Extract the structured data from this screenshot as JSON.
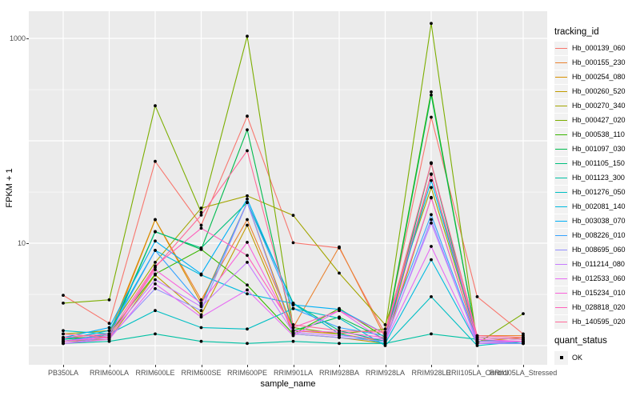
{
  "figure": {
    "x_axis_title": "sample_name",
    "y_axis_title": "FPKM + 1",
    "y_tick_labels": [
      "1000",
      "10"
    ],
    "legends": {
      "tracking": {
        "title": "tracking_id"
      },
      "quant": {
        "title": "quant_status",
        "items": [
          {
            "label": "OK"
          }
        ]
      }
    },
    "colors": {
      "panel_bg": "#EBEBEB",
      "gridline": "#FFFFFF",
      "tick_label": "#4D4D4D",
      "axis_title": "#000000",
      "legend_key_bg": "#F2F2F2",
      "point": "#000000"
    }
  },
  "chart_data": {
    "type": "line",
    "title": "",
    "xlabel": "sample_name",
    "ylabel": "FPKM + 1",
    "y_scale": "log10",
    "ylim": [
      0.9,
      1600
    ],
    "y_ticks_labeled": [
      1000,
      10
    ],
    "y_gridlines_major": [
      1,
      10,
      100,
      1000
    ],
    "y_gridlines_minor": [
      3.16,
      31.6,
      316
    ],
    "grid": true,
    "legend_position": "right",
    "marker": "black point (quant_status = OK) at every observation",
    "categories": [
      "PB350LA",
      "RRIM600LA",
      "RRIM600LE",
      "RRIM600SE",
      "RRIM600PE",
      "RRIM901LA",
      "RRIM928BA",
      "RRIM928LA",
      "RRIM928LE",
      "RRII105LA_Control",
      "RRII105LA_Stressed"
    ],
    "series": [
      {
        "name": "Hb_000139_060",
        "color": "#F8766D",
        "values": [
          3.1,
          1.65,
          63,
          15,
          174,
          10.1,
          9.0,
          1.3,
          170,
          3.0,
          1.3
        ]
      },
      {
        "name": "Hb_000155_230",
        "color": "#EA8331",
        "values": [
          1.2,
          1.2,
          17,
          2.8,
          17,
          1.5,
          9.2,
          1.2,
          60,
          1.25,
          1.25
        ]
      },
      {
        "name": "Hb_000254_080",
        "color": "#D89000",
        "values": [
          1.1,
          1.3,
          17,
          2.6,
          25,
          1.4,
          1.3,
          1.1,
          47,
          1.1,
          1.2
        ]
      },
      {
        "name": "Hb_000260_520",
        "color": "#C09B00",
        "values": [
          1.1,
          1.15,
          4.9,
          2.0,
          15,
          1.3,
          1.2,
          1.05,
          28,
          1.1,
          1.1
        ]
      },
      {
        "name": "Hb_000270_340",
        "color": "#A3A500",
        "values": [
          1.3,
          1.4,
          6.5,
          22,
          29,
          18.7,
          5.1,
          1.6,
          35,
          1.2,
          1.15
        ]
      },
      {
        "name": "Hb_000427_020",
        "color": "#7CAE00",
        "values": [
          2.6,
          2.8,
          220,
          20,
          1050,
          1.5,
          1.3,
          1.45,
          1400,
          1.05,
          2.05
        ]
      },
      {
        "name": "Hb_000538_110",
        "color": "#39B600",
        "values": [
          1.2,
          1.3,
          5.0,
          8.7,
          3.9,
          1.3,
          2.3,
          1.2,
          300,
          1.1,
          1.1
        ]
      },
      {
        "name": "Hb_001097_030",
        "color": "#00BB4E",
        "values": [
          1.15,
          1.25,
          13,
          8.7,
          128,
          1.4,
          1.9,
          1.15,
          280,
          1.1,
          1.1
        ]
      },
      {
        "name": "Hb_001105_150",
        "color": "#00BF7D",
        "values": [
          1.1,
          1.2,
          12.9,
          9.0,
          25,
          2.6,
          1.4,
          1.1,
          61,
          1.05,
          1.05
        ]
      },
      {
        "name": "Hb_001123_300",
        "color": "#00C1A3",
        "values": [
          1.05,
          1.1,
          1.3,
          1.1,
          1.05,
          1.1,
          1.05,
          1.05,
          1.3,
          1.15,
          1.05
        ]
      },
      {
        "name": "Hb_001276_050",
        "color": "#00BFC4",
        "values": [
          1.4,
          1.3,
          2.2,
          1.5,
          1.45,
          2.3,
          1.85,
          1.0,
          3.0,
          1.0,
          1.1
        ]
      },
      {
        "name": "Hb_002081_140",
        "color": "#00BAE0",
        "values": [
          1.15,
          1.4,
          8.5,
          4.9,
          3.2,
          2.57,
          1.3,
          1.05,
          6.9,
          1.05,
          1.05
        ]
      },
      {
        "name": "Hb_003038_070",
        "color": "#00B0F6",
        "values": [
          1.2,
          1.5,
          10.5,
          5.0,
          27,
          2.5,
          2.26,
          1.3,
          41,
          1.2,
          1.15
        ]
      },
      {
        "name": "Hb_008226_010",
        "color": "#35A2FF",
        "values": [
          1.1,
          1.3,
          8.5,
          2.5,
          25,
          2.3,
          1.5,
          1.25,
          19,
          1.1,
          1.1
        ]
      },
      {
        "name": "Hb_008695_060",
        "color": "#9590FF",
        "values": [
          1.05,
          1.2,
          3.6,
          2.2,
          25,
          1.3,
          1.2,
          1.1,
          17,
          1.05,
          1.05
        ]
      },
      {
        "name": "Hb_011214_080",
        "color": "#C77CFF",
        "values": [
          1.1,
          1.25,
          4.4,
          2.4,
          6.5,
          1.35,
          1.25,
          1.15,
          15.7,
          1.1,
          1.1
        ]
      },
      {
        "name": "Hb_012533_060",
        "color": "#E76BF3",
        "values": [
          1.05,
          1.15,
          4.0,
          1.9,
          3.5,
          1.25,
          2.2,
          1.1,
          9.3,
          1.05,
          1.1
        ]
      },
      {
        "name": "Hb_015234_010",
        "color": "#FA62DB",
        "values": [
          1.1,
          1.2,
          5.5,
          2.6,
          10.2,
          1.4,
          1.35,
          1.2,
          27.7,
          1.15,
          1.1
        ]
      },
      {
        "name": "Hb_028818_020",
        "color": "#FF62BC",
        "values": [
          1.2,
          1.3,
          6.0,
          14.0,
          7.6,
          1.5,
          2.2,
          1.3,
          47.5,
          1.2,
          1.15
        ]
      },
      {
        "name": "Hb_140595_020",
        "color": "#FF6A98",
        "values": [
          1.3,
          1.2,
          5.8,
          18.8,
          80,
          1.6,
          1.4,
          1.35,
          61,
          1.25,
          1.2
        ]
      }
    ],
    "quant_status_values": [
      "OK"
    ]
  }
}
